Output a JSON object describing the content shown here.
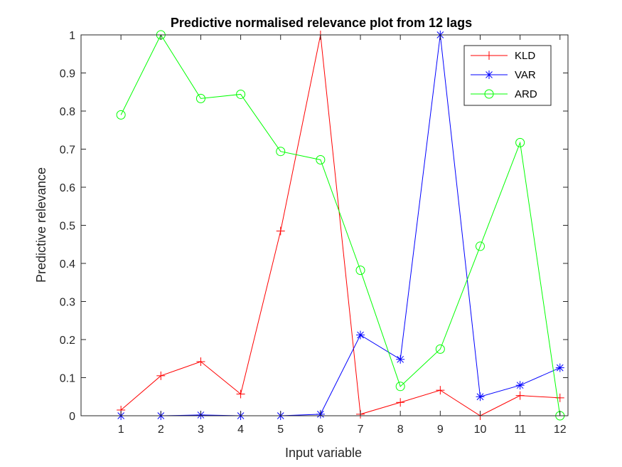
{
  "chart_data": {
    "type": "line",
    "title": "Predictive normalised relevance plot from 12 lags",
    "xlabel": "Input variable",
    "ylabel": "Predictive relevance",
    "x": [
      1,
      2,
      3,
      4,
      5,
      6,
      7,
      8,
      9,
      10,
      11,
      12
    ],
    "xlim": [
      0,
      12.2
    ],
    "ylim": [
      0,
      1
    ],
    "xticks": [
      "1",
      "2",
      "3",
      "4",
      "5",
      "6",
      "7",
      "8",
      "9",
      "10",
      "11",
      "12"
    ],
    "yticks": [
      "0",
      "0.1",
      "0.2",
      "0.3",
      "0.4",
      "0.5",
      "0.6",
      "0.7",
      "0.8",
      "0.9",
      "1"
    ],
    "grid": false,
    "legend_position": "top-right",
    "series": [
      {
        "name": "KLD",
        "color": "#ff0000",
        "marker": "plus",
        "values": [
          0.015,
          0.105,
          0.142,
          0.057,
          0.485,
          1.0,
          0.004,
          0.035,
          0.067,
          0.0,
          0.053,
          0.047
        ]
      },
      {
        "name": "VAR",
        "color": "#0000ff",
        "marker": "asterisk",
        "values": [
          0.0,
          0.0,
          0.002,
          0.0,
          0.0,
          0.004,
          0.212,
          0.148,
          1.0,
          0.05,
          0.08,
          0.126
        ]
      },
      {
        "name": "ARD",
        "color": "#00ff00",
        "marker": "circle",
        "values": [
          0.79,
          1.0,
          0.833,
          0.844,
          0.694,
          0.672,
          0.382,
          0.077,
          0.175,
          0.445,
          0.717,
          0.0
        ]
      }
    ]
  }
}
